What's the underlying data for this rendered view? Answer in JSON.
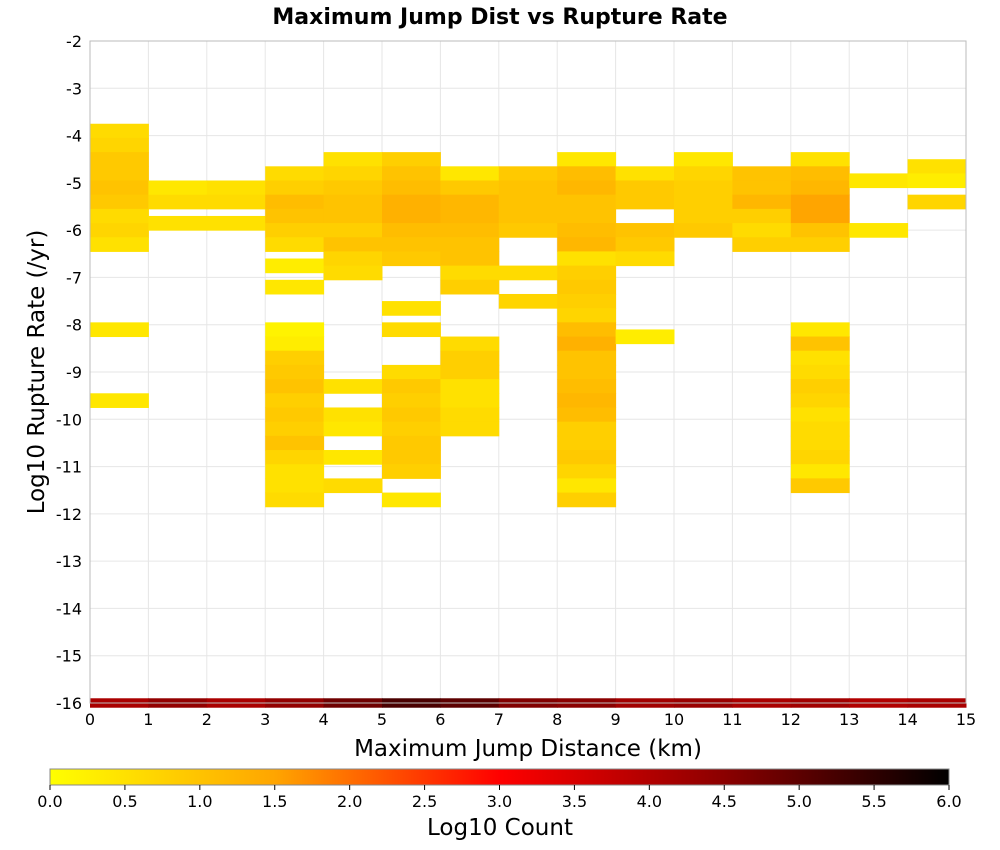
{
  "chart_data": {
    "type": "heatmap",
    "title": "Maximum Jump Dist vs Rupture Rate",
    "xlabel": "Maximum Jump Distance (km)",
    "ylabel": "Log10 Rupture Rate (/yr)",
    "xlim": [
      0,
      15
    ],
    "ylim": [
      -16,
      -2
    ],
    "x_ticks": [
      "0",
      "1",
      "2",
      "3",
      "4",
      "5",
      "6",
      "7",
      "8",
      "9",
      "10",
      "11",
      "12",
      "13",
      "14",
      "15"
    ],
    "y_ticks": [
      "-2",
      "-3",
      "-4",
      "-5",
      "-6",
      "-7",
      "-8",
      "-9",
      "-10",
      "-11",
      "-12",
      "-13",
      "-14",
      "-15",
      "-16"
    ],
    "grid": true,
    "colorbar": {
      "label": "Log10 Count",
      "range": [
        0,
        6
      ],
      "ticks": [
        "0.0",
        "0.5",
        "1.0",
        "1.5",
        "2.0",
        "2.5",
        "3.0",
        "3.5",
        "4.0",
        "4.5",
        "5.0",
        "5.5",
        "6.0"
      ],
      "colors": [
        "#ffff00",
        "#ffa500",
        "#ff0000",
        "#8b0000",
        "#000000"
      ],
      "placement": "bottom"
    },
    "cell_height_log": 0.3,
    "columns": [
      {
        "x": 0,
        "cells": [
          [
            -3.9,
            0.6
          ],
          [
            -4.2,
            0.7
          ],
          [
            -4.5,
            0.9
          ],
          [
            -4.8,
            0.9
          ],
          [
            -5.1,
            1.0
          ],
          [
            -5.4,
            0.9
          ],
          [
            -5.7,
            0.6
          ],
          [
            -6.0,
            0.7
          ],
          [
            -6.3,
            0.5
          ],
          [
            -8.1,
            0.4
          ],
          [
            -9.6,
            0.4
          ]
        ]
      },
      {
        "x": 1,
        "cells": [
          [
            -5.1,
            0.4
          ],
          [
            -5.4,
            0.6
          ],
          [
            -5.85,
            0.5
          ]
        ]
      },
      {
        "x": 2,
        "cells": [
          [
            -5.1,
            0.5
          ],
          [
            -5.4,
            0.6
          ],
          [
            -5.85,
            0.5
          ]
        ]
      },
      {
        "x": 3,
        "cells": [
          [
            -4.8,
            0.6
          ],
          [
            -5.1,
            0.8
          ],
          [
            -5.4,
            1.1
          ],
          [
            -5.7,
            1.0
          ],
          [
            -6.0,
            0.8
          ],
          [
            -6.3,
            0.6
          ],
          [
            -6.75,
            0.3
          ],
          [
            -7.2,
            0.4
          ],
          [
            -8.1,
            0.2
          ],
          [
            -8.4,
            0.3
          ],
          [
            -8.7,
            0.8
          ],
          [
            -9.0,
            0.9
          ],
          [
            -9.3,
            1.0
          ],
          [
            -9.6,
            0.8
          ],
          [
            -9.9,
            0.9
          ],
          [
            -10.2,
            0.8
          ],
          [
            -10.5,
            1.0
          ],
          [
            -10.8,
            0.7
          ],
          [
            -11.1,
            0.5
          ],
          [
            -11.4,
            0.5
          ],
          [
            -11.7,
            0.6
          ]
        ]
      },
      {
        "x": 4,
        "cells": [
          [
            -4.5,
            0.5
          ],
          [
            -4.8,
            0.7
          ],
          [
            -5.1,
            0.9
          ],
          [
            -5.4,
            1.0
          ],
          [
            -5.7,
            1.0
          ],
          [
            -6.0,
            0.8
          ],
          [
            -6.3,
            1.0
          ],
          [
            -6.6,
            0.7
          ],
          [
            -6.9,
            0.6
          ],
          [
            -9.3,
            0.5
          ],
          [
            -9.9,
            0.5
          ],
          [
            -10.2,
            0.4
          ],
          [
            -10.8,
            0.4
          ],
          [
            -11.4,
            0.6
          ]
        ]
      },
      {
        "x": 5,
        "cells": [
          [
            -4.5,
            0.8
          ],
          [
            -4.8,
            1.0
          ],
          [
            -5.1,
            1.1
          ],
          [
            -5.4,
            1.3
          ],
          [
            -5.7,
            1.3
          ],
          [
            -6.0,
            1.1
          ],
          [
            -6.3,
            1.0
          ],
          [
            -6.6,
            0.9
          ],
          [
            -7.65,
            0.5
          ],
          [
            -8.1,
            0.6
          ],
          [
            -9.0,
            0.6
          ],
          [
            -9.3,
            0.9
          ],
          [
            -9.6,
            0.8
          ],
          [
            -9.9,
            0.9
          ],
          [
            -10.2,
            0.8
          ],
          [
            -10.5,
            0.9
          ],
          [
            -10.8,
            0.9
          ],
          [
            -11.1,
            0.8
          ],
          [
            -11.7,
            0.4
          ]
        ]
      },
      {
        "x": 6,
        "cells": [
          [
            -4.8,
            0.4
          ],
          [
            -5.1,
            0.9
          ],
          [
            -5.4,
            1.2
          ],
          [
            -5.7,
            1.2
          ],
          [
            -6.0,
            1.1
          ],
          [
            -6.3,
            1.0
          ],
          [
            -6.6,
            1.0
          ],
          [
            -6.9,
            0.6
          ],
          [
            -7.2,
            0.8
          ],
          [
            -8.4,
            0.6
          ],
          [
            -8.7,
            0.8
          ],
          [
            -9.0,
            0.8
          ],
          [
            -9.3,
            0.5
          ],
          [
            -9.6,
            0.5
          ],
          [
            -9.9,
            0.6
          ],
          [
            -10.2,
            0.6
          ]
        ]
      },
      {
        "x": 7,
        "cells": [
          [
            -4.8,
            0.9
          ],
          [
            -5.1,
            1.0
          ],
          [
            -5.4,
            1.0
          ],
          [
            -5.7,
            1.0
          ],
          [
            -6.0,
            0.9
          ],
          [
            -6.9,
            0.6
          ],
          [
            -7.5,
            0.7
          ]
        ]
      },
      {
        "x": 8,
        "cells": [
          [
            -4.5,
            0.4
          ],
          [
            -4.8,
            1.1
          ],
          [
            -5.1,
            1.2
          ],
          [
            -5.4,
            1.0
          ],
          [
            -5.7,
            1.0
          ],
          [
            -6.0,
            1.1
          ],
          [
            -6.3,
            1.2
          ],
          [
            -6.6,
            0.5
          ],
          [
            -6.9,
            0.8
          ],
          [
            -7.2,
            0.9
          ],
          [
            -7.5,
            0.8
          ],
          [
            -7.8,
            0.7
          ],
          [
            -8.1,
            1.1
          ],
          [
            -8.4,
            1.3
          ],
          [
            -8.7,
            1.0
          ],
          [
            -9.0,
            1.0
          ],
          [
            -9.3,
            1.1
          ],
          [
            -9.6,
            1.2
          ],
          [
            -9.9,
            1.1
          ],
          [
            -10.2,
            0.8
          ],
          [
            -10.5,
            0.8
          ],
          [
            -10.8,
            0.9
          ],
          [
            -11.1,
            0.7
          ],
          [
            -11.4,
            0.4
          ],
          [
            -11.7,
            0.8
          ]
        ]
      },
      {
        "x": 9,
        "cells": [
          [
            -4.8,
            0.5
          ],
          [
            -5.1,
            0.9
          ],
          [
            -5.4,
            0.9
          ],
          [
            -6.0,
            1.0
          ],
          [
            -6.3,
            0.9
          ],
          [
            -6.6,
            0.6
          ],
          [
            -8.25,
            0.3
          ]
        ]
      },
      {
        "x": 10,
        "cells": [
          [
            -4.5,
            0.4
          ],
          [
            -4.8,
            0.7
          ],
          [
            -5.1,
            0.8
          ],
          [
            -5.4,
            0.8
          ],
          [
            -5.7,
            0.8
          ],
          [
            -6.0,
            0.9
          ]
        ]
      },
      {
        "x": 11,
        "cells": [
          [
            -4.8,
            1.0
          ],
          [
            -5.1,
            1.0
          ],
          [
            -5.4,
            1.2
          ],
          [
            -5.7,
            0.8
          ],
          [
            -6.0,
            0.6
          ],
          [
            -6.3,
            0.8
          ]
        ]
      },
      {
        "x": 12,
        "cells": [
          [
            -4.5,
            0.5
          ],
          [
            -4.8,
            1.1
          ],
          [
            -5.1,
            1.2
          ],
          [
            -5.4,
            1.5
          ],
          [
            -5.7,
            1.5
          ],
          [
            -6.0,
            1.0
          ],
          [
            -6.3,
            0.8
          ],
          [
            -8.1,
            0.4
          ],
          [
            -8.4,
            1.0
          ],
          [
            -8.7,
            0.5
          ],
          [
            -9.0,
            0.6
          ],
          [
            -9.3,
            0.8
          ],
          [
            -9.6,
            0.7
          ],
          [
            -9.9,
            0.5
          ],
          [
            -10.2,
            0.6
          ],
          [
            -10.5,
            0.6
          ],
          [
            -10.8,
            0.7
          ],
          [
            -11.1,
            0.4
          ],
          [
            -11.4,
            0.9
          ]
        ]
      },
      {
        "x": 13,
        "cells": [
          [
            -4.95,
            0.4
          ],
          [
            -6.0,
            0.4
          ]
        ]
      },
      {
        "x": 14,
        "cells": [
          [
            -4.65,
            0.5
          ],
          [
            -4.95,
            0.3
          ],
          [
            -5.4,
            0.7
          ]
        ]
      }
    ],
    "floor_row": {
      "y": -16,
      "values": [
        4.1,
        4.4,
        4.1,
        4.4,
        4.8,
        5.2,
        5.0,
        4.6,
        4.5,
        4.2,
        4.3,
        4.1,
        4.2,
        4.0,
        4.1
      ]
    }
  }
}
